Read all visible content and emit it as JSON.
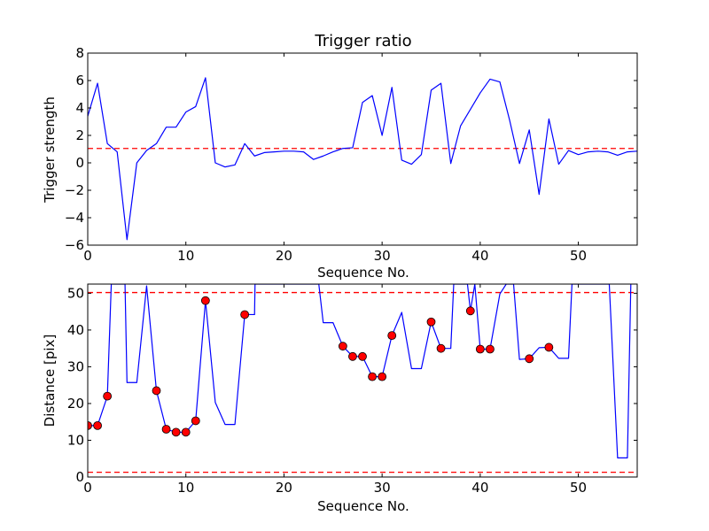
{
  "chart_data": [
    {
      "type": "line",
      "title": "Trigger ratio",
      "xlabel": "Sequence No.",
      "ylabel": "Trigger strength",
      "xlim": [
        0,
        56
      ],
      "ylim": [
        -6,
        8
      ],
      "xticks": [
        "0",
        "10",
        "20",
        "30",
        "40",
        "50"
      ],
      "yticks": [
        "−6",
        "−4",
        "−2",
        "0",
        "2",
        "4",
        "6",
        "8"
      ],
      "grid": false,
      "series": [
        {
          "color": "#0000ff",
          "x": [
            0,
            1,
            2,
            3,
            4,
            5,
            6,
            7,
            8,
            9,
            10,
            11,
            12,
            13,
            14,
            15,
            16,
            17,
            18,
            19,
            20,
            21,
            22,
            23,
            24,
            25,
            26,
            27,
            28,
            29,
            30,
            31,
            32,
            33,
            34,
            35,
            36,
            37,
            38,
            39,
            40,
            41,
            42,
            43,
            44,
            45,
            46,
            47,
            48,
            49,
            50,
            51,
            52,
            53,
            54,
            55,
            56
          ],
          "values": [
            3.4,
            5.8,
            1.4,
            0.8,
            -5.6,
            0.0,
            0.9,
            1.4,
            2.6,
            2.6,
            3.7,
            4.1,
            6.2,
            0.0,
            -0.3,
            -0.15,
            1.4,
            0.5,
            0.75,
            0.8,
            0.85,
            0.85,
            0.8,
            0.25,
            0.5,
            0.8,
            1.05,
            1.1,
            4.4,
            4.9,
            2.0,
            5.5,
            0.2,
            -0.1,
            0.6,
            5.3,
            5.8,
            -0.05,
            2.7,
            3.9,
            5.1,
            6.1,
            5.9,
            3.1,
            -0.05,
            2.4,
            -2.3,
            3.2,
            -0.1,
            0.9,
            0.6,
            0.8,
            0.85,
            0.8,
            0.55,
            0.8,
            0.85
          ]
        }
      ],
      "reference_lines": [
        {
          "y": 1.05,
          "color": "#ff0000",
          "style": "dashed"
        }
      ]
    },
    {
      "type": "line",
      "title": "",
      "xlabel": "Sequence No.",
      "ylabel": "Distance [pix]",
      "xlim": [
        0,
        56
      ],
      "ylim": [
        0,
        52.5
      ],
      "xticks": [
        "0",
        "10",
        "20",
        "30",
        "40",
        "50"
      ],
      "yticks": [
        "0",
        "10",
        "20",
        "30",
        "40",
        "50"
      ],
      "grid": false,
      "series": [
        {
          "color": "#0000ff",
          "x": [
            0,
            1,
            2,
            2.4,
            3.8,
            4,
            5,
            6,
            7,
            8,
            9,
            10,
            11,
            12,
            13,
            14,
            15,
            16,
            17,
            17.05,
            23.55,
            24,
            25,
            26,
            27,
            28,
            29,
            30,
            31,
            32,
            33,
            34,
            35,
            36,
            37,
            37.3,
            38.7,
            39,
            39.45,
            40,
            41,
            42,
            42.65,
            43.4,
            44,
            45,
            46,
            47,
            48,
            49,
            49.35,
            53.15,
            54,
            55,
            55.35
          ],
          "values": [
            14,
            14,
            22,
            52.5,
            52.5,
            25.7,
            25.7,
            52,
            23.5,
            13,
            12.2,
            12.2,
            15.3,
            48,
            20.3,
            14.3,
            14.3,
            44.2,
            44.2,
            52.5,
            52.5,
            42,
            42,
            35.6,
            32.8,
            32.8,
            27.3,
            27.3,
            38.5,
            44.8,
            29.5,
            29.5,
            42.2,
            35,
            35,
            52.5,
            52.5,
            45.2,
            52.5,
            34.8,
            34.8,
            49.8,
            52.5,
            52.5,
            32,
            32.2,
            35.2,
            35.3,
            32.3,
            32.3,
            52.5,
            52.5,
            5.2,
            5.2,
            52.5
          ]
        }
      ],
      "markers": {
        "color": "#ff0000",
        "x": [
          0,
          1,
          2,
          7,
          8,
          9,
          10,
          11,
          12,
          16,
          26,
          27,
          28,
          29,
          30,
          31,
          35,
          36,
          39,
          40,
          41,
          45,
          47
        ],
        "values": [
          14,
          14,
          22,
          23.5,
          13,
          12.2,
          12.2,
          15.3,
          48,
          44.2,
          35.6,
          32.8,
          32.8,
          27.3,
          27.3,
          38.5,
          42.2,
          35,
          45.2,
          34.8,
          34.8,
          32.2,
          35.3
        ]
      },
      "reference_lines": [
        {
          "y": 50.2,
          "color": "#ff0000",
          "style": "dashed"
        },
        {
          "y": 1.3,
          "color": "#ff0000",
          "style": "dashed"
        }
      ]
    }
  ]
}
